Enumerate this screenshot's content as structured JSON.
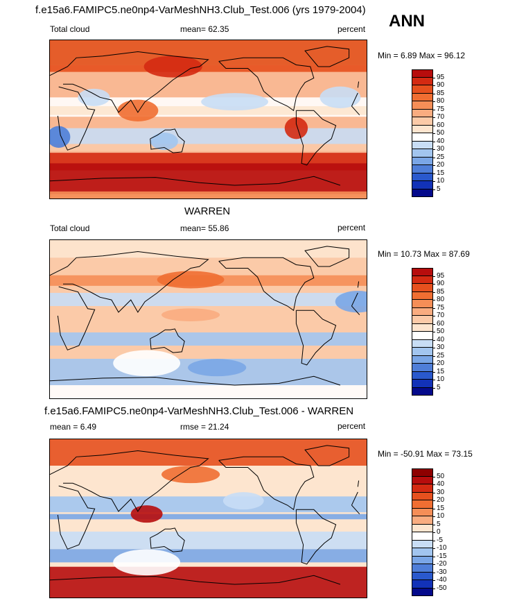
{
  "season": "ANN",
  "panels": [
    {
      "title": "f.e15a6.FAMIPC5.ne0np4-VarMeshNH3.Club_Test.006 (yrs 1979-2004)",
      "left_label": "Total cloud",
      "center_label": "mean=  62.35",
      "right_label": "percent",
      "minmax": "Min =   6.89 Max =  96.12",
      "colorbar": {
        "labels": [
          "95",
          "90",
          "85",
          "80",
          "75",
          "70",
          "60",
          "50",
          "40",
          "30",
          "25",
          "20",
          "15",
          "10",
          "5"
        ],
        "colors": [
          "#b70d0d",
          "#d42a12",
          "#e6501e",
          "#f06e32",
          "#f58e57",
          "#f9ac80",
          "#fbcaa8",
          "#fde5cf",
          "#ffffff",
          "#c8ddf5",
          "#a2c5ef",
          "#7aa6e6",
          "#4f7ed8",
          "#2a59cd",
          "#1232b8",
          "#040a8b"
        ]
      },
      "map": {
        "ocean": "#f9b893",
        "bands": [
          {
            "lat": 90,
            "h": 28,
            "color": "#e2531f"
          },
          {
            "lat": 62,
            "h": 8,
            "color": "#e6501e"
          },
          {
            "lat": 25,
            "h": 22,
            "color": "#ffffff"
          },
          {
            "lat": 15,
            "h": 10,
            "color": "#fde5cf"
          },
          {
            "lat": -10,
            "h": 18,
            "color": "#c8ddf5"
          },
          {
            "lat": -28,
            "h": 8,
            "color": "#fbcaa8"
          },
          {
            "lat": -38,
            "h": 20,
            "color": "#d42a12"
          },
          {
            "lat": -50,
            "h": 35,
            "color": "#b70d0d"
          },
          {
            "lat": -82,
            "h": 8,
            "color": "#f58e57"
          }
        ],
        "patches": [
          {
            "lon": -150,
            "lat": 20,
            "w": 70,
            "h": 15,
            "color": "#c8ddf5"
          },
          {
            "lon": 130,
            "lat": -25,
            "w": 25,
            "h": 15,
            "color": "#a2c5ef"
          },
          {
            "lon": 10,
            "lat": -20,
            "w": 20,
            "h": 20,
            "color": "#4f7ed8"
          },
          {
            "lon": 50,
            "lat": 25,
            "w": 30,
            "h": 15,
            "color": "#c8ddf5"
          },
          {
            "lon": -30,
            "lat": 25,
            "w": 40,
            "h": 20,
            "color": "#c8ddf5"
          },
          {
            "lon": 100,
            "lat": 10,
            "w": 40,
            "h": 20,
            "color": "#f06e32"
          },
          {
            "lon": -80,
            "lat": -10,
            "w": 20,
            "h": 20,
            "color": "#d42a12"
          },
          {
            "lon": 140,
            "lat": 60,
            "w": 60,
            "h": 20,
            "color": "#d42a12"
          }
        ]
      }
    },
    {
      "title": "WARREN",
      "left_label": "Total cloud",
      "center_label": "mean=  55.86",
      "right_label": "percent",
      "minmax": "Min =  10.73 Max =  87.69",
      "colorbar": {
        "labels": [
          "95",
          "90",
          "85",
          "80",
          "75",
          "70",
          "60",
          "50",
          "40",
          "30",
          "25",
          "20",
          "15",
          "10",
          "5"
        ],
        "colors": [
          "#b70d0d",
          "#d42a12",
          "#e6501e",
          "#f06e32",
          "#f58e57",
          "#f9ac80",
          "#fbcaa8",
          "#fde5cf",
          "#ffffff",
          "#c8ddf5",
          "#a2c5ef",
          "#7aa6e6",
          "#4f7ed8",
          "#2a59cd",
          "#1232b8",
          "#040a8b"
        ]
      },
      "map": {
        "ocean": "#fbcaa8",
        "bands": [
          {
            "lat": 90,
            "h": 20,
            "color": "#fde5cf"
          },
          {
            "lat": 50,
            "h": 12,
            "color": "#f58e57"
          },
          {
            "lat": 30,
            "h": 15,
            "color": "#c8ddf5"
          },
          {
            "lat": -15,
            "h": 15,
            "color": "#a2c5ef"
          },
          {
            "lat": -45,
            "h": 30,
            "color": "#a2c5ef"
          },
          {
            "lat": -75,
            "h": 15,
            "color": "#ffffff"
          }
        ],
        "patches": [
          {
            "lon": 160,
            "lat": 45,
            "w": 70,
            "h": 15,
            "color": "#f06e32"
          },
          {
            "lon": -10,
            "lat": 20,
            "w": 45,
            "h": 20,
            "color": "#7aa6e6"
          },
          {
            "lon": 110,
            "lat": -50,
            "w": 70,
            "h": 25,
            "color": "#ffffff"
          },
          {
            "lon": -170,
            "lat": -55,
            "w": 60,
            "h": 15,
            "color": "#7aa6e6"
          },
          {
            "lon": 160,
            "lat": 5,
            "w": 60,
            "h": 10,
            "color": "#f9ac80"
          }
        ]
      }
    },
    {
      "title": "f.e15a6.FAMIPC5.ne0np4-VarMeshNH3.Club_Test.006 - WARREN",
      "left_label": "mean =   6.49",
      "center_label": "rmse =  21.24",
      "right_label": "percent",
      "minmax": "Min = -50.91 Max =  73.15",
      "colorbar": {
        "labels": [
          "50",
          "40",
          "30",
          "20",
          "15",
          "10",
          "5",
          "0",
          "-5",
          "-10",
          "-15",
          "-20",
          "-30",
          "-40",
          "-50"
        ],
        "colors": [
          "#8e0000",
          "#b70d0d",
          "#d42a12",
          "#e6501e",
          "#f06e32",
          "#f58e57",
          "#f9ac80",
          "#fde5cf",
          "#ffffff",
          "#c8ddf5",
          "#a2c5ef",
          "#7aa6e6",
          "#4f7ed8",
          "#2a59cd",
          "#1232b8",
          "#040a8b"
        ]
      },
      "map": {
        "ocean": "#fde5cf",
        "bands": [
          {
            "lat": 90,
            "h": 30,
            "color": "#e6501e"
          },
          {
            "lat": 25,
            "h": 18,
            "color": "#a2c5ef"
          },
          {
            "lat": 5,
            "h": 6,
            "color": "#7aa6e6"
          },
          {
            "lat": -15,
            "h": 20,
            "color": "#c8ddf5"
          },
          {
            "lat": -35,
            "h": 15,
            "color": "#7aa6e6"
          },
          {
            "lat": -55,
            "h": 35,
            "color": "#b70d0d"
          }
        ],
        "patches": [
          {
            "lon": 160,
            "lat": 50,
            "w": 60,
            "h": 15,
            "color": "#f06e32"
          },
          {
            "lon": 110,
            "lat": -50,
            "w": 70,
            "h": 25,
            "color": "#ffffff"
          },
          {
            "lon": 110,
            "lat": 5,
            "w": 30,
            "h": 15,
            "color": "#b70d0d"
          },
          {
            "lon": -140,
            "lat": 20,
            "w": 40,
            "h": 15,
            "color": "#c8ddf5"
          }
        ]
      }
    }
  ]
}
